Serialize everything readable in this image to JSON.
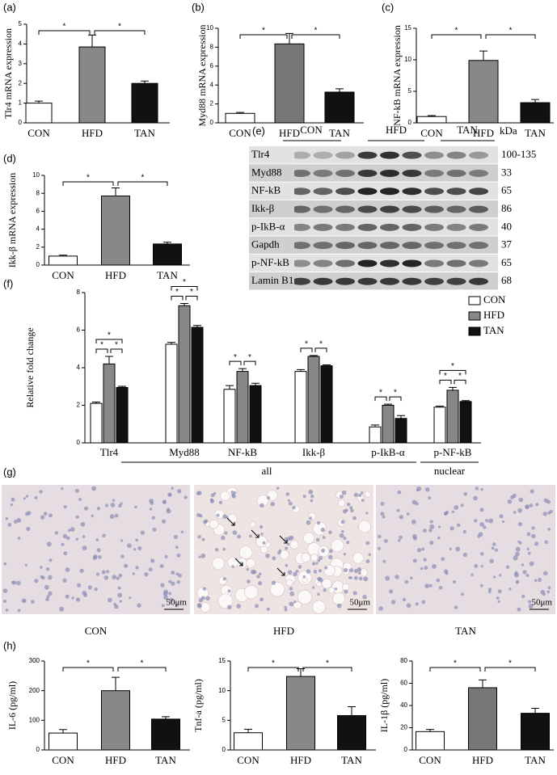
{
  "chart_data": [
    {
      "type": "bar",
      "label": "(a)",
      "y_label": "Tlr4 mRNA expression",
      "categories": [
        "CON",
        "HFD",
        "TAN"
      ],
      "values": [
        1.0,
        3.85,
        2.0
      ],
      "errors": [
        0.1,
        0.6,
        0.12
      ],
      "colors": [
        "#ffffff",
        "#888888",
        "#111111"
      ],
      "ylim": [
        0,
        5
      ],
      "yticks": [
        0,
        1,
        2,
        3,
        4,
        5
      ],
      "annotations": [
        "*",
        "*"
      ]
    },
    {
      "type": "bar",
      "label": "(b)",
      "y_label": "Myd88 mRNA expression",
      "categories": [
        "CON",
        "HFD",
        "TAN"
      ],
      "values": [
        1.0,
        8.35,
        3.25
      ],
      "errors": [
        0.1,
        1.1,
        0.35
      ],
      "colors": [
        "#ffffff",
        "#777777",
        "#111111"
      ],
      "ylim": [
        0,
        10
      ],
      "yticks": [
        0,
        2,
        4,
        6,
        8,
        10
      ],
      "annotations": [
        "*",
        "*"
      ]
    },
    {
      "type": "bar",
      "label": "(c)",
      "y_label": "NF-kB mRNA expression",
      "categories": [
        "CON",
        "HFD",
        "TAN"
      ],
      "values": [
        1.0,
        9.9,
        3.2
      ],
      "errors": [
        0.15,
        1.5,
        0.5
      ],
      "colors": [
        "#ffffff",
        "#888888",
        "#111111"
      ],
      "ylim": [
        0,
        15
      ],
      "yticks": [
        0,
        5,
        10,
        15
      ],
      "annotations": [
        "*",
        "*"
      ]
    },
    {
      "type": "bar",
      "label": "(d)",
      "y_label": "Ikk-β mRNA expression",
      "categories": [
        "CON",
        "HFD",
        "TAN"
      ],
      "values": [
        1.0,
        7.7,
        2.35
      ],
      "errors": [
        0.1,
        0.9,
        0.2
      ],
      "colors": [
        "#ffffff",
        "#888888",
        "#111111"
      ],
      "ylim": [
        0,
        10
      ],
      "yticks": [
        0,
        2,
        4,
        6,
        8,
        10
      ],
      "annotations": [
        "*",
        "*"
      ]
    },
    {
      "type": "bar",
      "label": "(f)",
      "y_label": "Relative fold change",
      "categories": [
        "Tlr4",
        "Myd88",
        "NF-kB",
        "Ikk-β",
        "p-IkB-α",
        "p-NF-kB"
      ],
      "series": [
        {
          "name": "CON",
          "color": "#ffffff",
          "values": [
            2.1,
            5.25,
            2.85,
            3.8,
            0.85,
            1.9
          ],
          "errors": [
            0.07,
            0.1,
            0.2,
            0.1,
            0.1,
            0.05
          ]
        },
        {
          "name": "HFD",
          "color": "#888888",
          "values": [
            4.2,
            7.3,
            3.8,
            4.6,
            2.0,
            2.8
          ],
          "errors": [
            0.4,
            0.12,
            0.15,
            0.05,
            0.06,
            0.15
          ]
        },
        {
          "name": "TAN",
          "color": "#111111",
          "values": [
            2.95,
            6.15,
            3.05,
            4.1,
            1.3,
            2.2
          ],
          "errors": [
            0.06,
            0.1,
            0.12,
            0.05,
            0.15,
            0.05
          ]
        }
      ],
      "ylim": [
        0,
        8
      ],
      "yticks": [
        0,
        2,
        4,
        6,
        8
      ],
      "legend": "upper right",
      "annotations": [
        [
          "*",
          "*",
          "*"
        ],
        [
          "*",
          "*",
          "*"
        ],
        [
          "*",
          "*"
        ],
        [
          "*",
          "*"
        ],
        [
          "*",
          "*"
        ],
        [
          "*",
          "*",
          "*"
        ]
      ],
      "group_labels": [
        "all",
        "nuclear"
      ]
    },
    {
      "type": "bar",
      "label": "(h)",
      "y_label": "IL-6 (pg/ml)",
      "categories": [
        "CON",
        "HFD",
        "TAN"
      ],
      "values": [
        57,
        200,
        104
      ],
      "errors": [
        12,
        45,
        8
      ],
      "colors": [
        "#ffffff",
        "#888888",
        "#111111"
      ],
      "ylim": [
        0,
        300
      ],
      "yticks": [
        0,
        100,
        200,
        300
      ],
      "annotations": [
        "*",
        "*"
      ]
    },
    {
      "type": "bar",
      "y_label": "Tnf-a (pg/ml)",
      "categories": [
        "CON",
        "HFD",
        "TAN"
      ],
      "values": [
        2.9,
        12.4,
        5.8
      ],
      "errors": [
        0.6,
        1.3,
        1.5
      ],
      "colors": [
        "#ffffff",
        "#888888",
        "#111111"
      ],
      "ylim": [
        0,
        15
      ],
      "yticks": [
        0,
        5,
        10,
        15
      ],
      "annotations": [
        "*",
        "*"
      ]
    },
    {
      "type": "bar",
      "y_label": "IL-1β (pg/ml)",
      "categories": [
        "CON",
        "HFD",
        "TAN"
      ],
      "values": [
        16.5,
        56,
        33
      ],
      "errors": [
        2,
        7,
        4.5
      ],
      "colors": [
        "#ffffff",
        "#777777",
        "#111111"
      ],
      "ylim": [
        0,
        80
      ],
      "yticks": [
        0,
        20,
        40,
        60,
        80
      ],
      "annotations": [
        "*",
        "*"
      ]
    }
  ],
  "blot": {
    "label": "(e)",
    "groups": [
      "CON",
      "HFD",
      "TAN"
    ],
    "unit": "kDa",
    "rows": [
      {
        "protein": "Tlr4",
        "kda": "100-135"
      },
      {
        "protein": "Myd88",
        "kda": "33"
      },
      {
        "protein": "NF-kB",
        "kda": "65"
      },
      {
        "protein": "Ikk-β",
        "kda": "86"
      },
      {
        "protein": "p-IkB-α",
        "kda": "40"
      },
      {
        "protein": "Gapdh",
        "kda": "37"
      },
      {
        "protein": "p-NF-kB",
        "kda": "65"
      },
      {
        "protein": "Lamin B1",
        "kda": "68"
      }
    ]
  },
  "histology": {
    "label": "(g)",
    "panels": [
      {
        "group": "CON",
        "scale": "50μm"
      },
      {
        "group": "HFD",
        "scale": "50μm"
      },
      {
        "group": "TAN",
        "scale": "50μm"
      }
    ]
  }
}
